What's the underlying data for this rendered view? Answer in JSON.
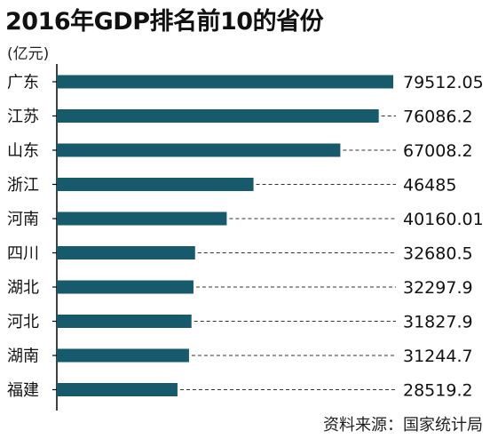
{
  "title": "2016年GDP排名前10的省份",
  "unit": "(亿元)",
  "source": "资料来源：国家统计局",
  "colors": {
    "bar": "#175a6b",
    "axis": "#000000",
    "dash": "#333333"
  },
  "chart_data": {
    "type": "bar",
    "orientation": "horizontal",
    "title": "2016年GDP排名前10的省份",
    "ylabel": "(亿元)",
    "xlim": [
      0,
      79512.05
    ],
    "grid": false,
    "categories": [
      "广东",
      "江苏",
      "山东",
      "浙江",
      "河南",
      "四川",
      "湖北",
      "河北",
      "湖南",
      "福建"
    ],
    "values": [
      79512.05,
      76086.2,
      67008.2,
      46485,
      40160.01,
      32680.5,
      32297.9,
      31827.9,
      31244.7,
      28519.2
    ],
    "value_labels": [
      "79512.05",
      "76086.2",
      "67008.2",
      "46485",
      "40160.01",
      "32680.5",
      "32297.9",
      "31827.9",
      "31244.7",
      "28519.2"
    ]
  }
}
